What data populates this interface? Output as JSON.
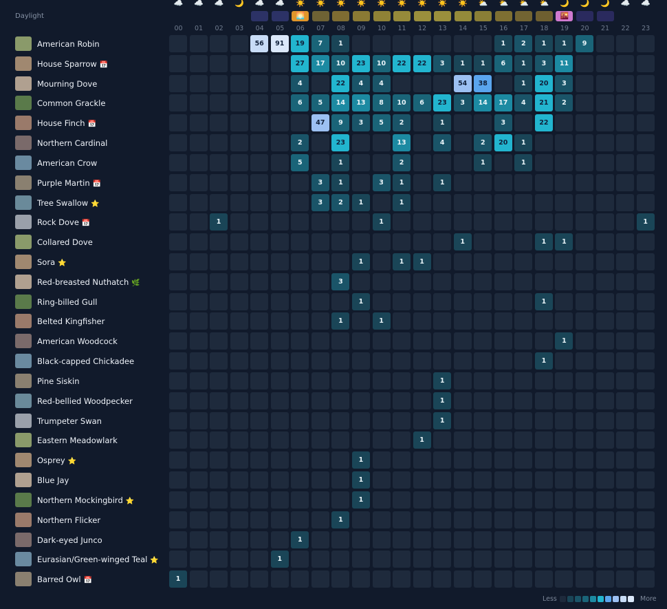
{
  "header": {
    "title": "Daylight"
  },
  "hours": [
    "00",
    "01",
    "02",
    "03",
    "04",
    "05",
    "06",
    "07",
    "08",
    "09",
    "10",
    "11",
    "12",
    "13",
    "14",
    "15",
    "16",
    "17",
    "18",
    "19",
    "20",
    "21",
    "22",
    "23"
  ],
  "weather": [
    "☁️",
    "☁️",
    "☁️",
    "🌙",
    "☁️",
    "☁️",
    "☀️",
    "☀️",
    "☀️",
    "☀️",
    "☀️",
    "☀️",
    "☀️",
    "☀️",
    "☀️",
    "⛅",
    "⛅",
    "⛅",
    "⛅",
    "🌙",
    "🌙",
    "🌙",
    "☁️",
    "☁️"
  ],
  "daylight_colors": [
    null,
    null,
    null,
    null,
    "#2c3266",
    "#2c3266",
    "#e0962a",
    "#6e6234",
    "#7e6c32",
    "#8a7a34",
    "#8f8236",
    "#968a3a",
    "#9a8f3c",
    "#9a8f3c",
    "#948a3a",
    "#8a7e36",
    "#7e6f32",
    "#726432",
    "#6e5f30",
    "#d07ad0",
    "#2a2a5e",
    "#2a2a5e",
    null,
    null
  ],
  "daylight_icons": [
    null,
    null,
    null,
    null,
    null,
    null,
    "🌅",
    null,
    null,
    null,
    null,
    null,
    null,
    null,
    null,
    null,
    null,
    null,
    null,
    "🌇",
    null,
    null,
    null,
    null
  ],
  "scale_colors": [
    "#1a4557",
    "#1a5468",
    "#1a6478",
    "#1c8aa2",
    "#22b5cf",
    "#5aa5ee",
    "#9cc0f2",
    "#c8dcf7",
    "#dbe8fa"
  ],
  "empty_color": "#1e2a3c",
  "rows": [
    {
      "name": "American Robin",
      "badge": null,
      "counts": [
        null,
        null,
        null,
        null,
        56,
        91,
        19,
        7,
        1,
        null,
        null,
        null,
        null,
        null,
        null,
        null,
        1,
        2,
        1,
        1,
        9,
        null,
        null,
        null
      ]
    },
    {
      "name": "House Sparrow",
      "badge": "📅",
      "counts": [
        null,
        null,
        null,
        null,
        null,
        null,
        27,
        17,
        10,
        23,
        10,
        22,
        22,
        3,
        1,
        1,
        6,
        1,
        3,
        11,
        null,
        null,
        null,
        null
      ]
    },
    {
      "name": "Mourning Dove",
      "badge": null,
      "counts": [
        null,
        null,
        null,
        null,
        null,
        null,
        4,
        null,
        22,
        4,
        4,
        null,
        null,
        null,
        54,
        38,
        null,
        1,
        20,
        3,
        null,
        null,
        null,
        null
      ]
    },
    {
      "name": "Common Grackle",
      "badge": null,
      "counts": [
        null,
        null,
        null,
        null,
        null,
        null,
        6,
        5,
        14,
        13,
        8,
        10,
        6,
        23,
        3,
        14,
        17,
        4,
        21,
        2,
        null,
        null,
        null,
        null
      ]
    },
    {
      "name": "House Finch",
      "badge": "📅",
      "counts": [
        null,
        null,
        null,
        null,
        null,
        null,
        null,
        47,
        9,
        3,
        5,
        2,
        null,
        1,
        null,
        null,
        3,
        null,
        22,
        null,
        null,
        null,
        null,
        null
      ]
    },
    {
      "name": "Northern Cardinal",
      "badge": null,
      "counts": [
        null,
        null,
        null,
        null,
        null,
        null,
        2,
        null,
        23,
        null,
        null,
        13,
        null,
        4,
        null,
        2,
        20,
        1,
        null,
        null,
        null,
        null,
        null,
        null
      ]
    },
    {
      "name": "American Crow",
      "badge": null,
      "counts": [
        null,
        null,
        null,
        null,
        null,
        null,
        5,
        null,
        1,
        null,
        null,
        2,
        null,
        null,
        null,
        1,
        null,
        1,
        null,
        null,
        null,
        null,
        null,
        null
      ]
    },
    {
      "name": "Purple Martin",
      "badge": "📅",
      "counts": [
        null,
        null,
        null,
        null,
        null,
        null,
        null,
        3,
        1,
        null,
        3,
        1,
        null,
        1,
        null,
        null,
        null,
        null,
        null,
        null,
        null,
        null,
        null,
        null
      ]
    },
    {
      "name": "Tree Swallow",
      "badge": "⭐",
      "counts": [
        null,
        null,
        null,
        null,
        null,
        null,
        null,
        3,
        2,
        1,
        null,
        1,
        null,
        null,
        null,
        null,
        null,
        null,
        null,
        null,
        null,
        null,
        null,
        null
      ]
    },
    {
      "name": "Rock Dove",
      "badge": "📅",
      "counts": [
        null,
        null,
        1,
        null,
        null,
        null,
        null,
        null,
        null,
        null,
        1,
        null,
        null,
        null,
        null,
        null,
        null,
        null,
        null,
        null,
        null,
        null,
        null,
        1
      ]
    },
    {
      "name": "Collared Dove",
      "badge": null,
      "counts": [
        null,
        null,
        null,
        null,
        null,
        null,
        null,
        null,
        null,
        null,
        null,
        null,
        null,
        null,
        1,
        null,
        null,
        null,
        1,
        1,
        null,
        null,
        null,
        null
      ]
    },
    {
      "name": "Sora",
      "badge": "⭐",
      "counts": [
        null,
        null,
        null,
        null,
        null,
        null,
        null,
        null,
        null,
        1,
        null,
        1,
        1,
        null,
        null,
        null,
        null,
        null,
        null,
        null,
        null,
        null,
        null,
        null
      ]
    },
    {
      "name": "Red-breasted Nuthatch",
      "badge": "🌿",
      "counts": [
        null,
        null,
        null,
        null,
        null,
        null,
        null,
        null,
        3,
        null,
        null,
        null,
        null,
        null,
        null,
        null,
        null,
        null,
        null,
        null,
        null,
        null,
        null,
        null
      ]
    },
    {
      "name": "Ring-billed Gull",
      "badge": null,
      "counts": [
        null,
        null,
        null,
        null,
        null,
        null,
        null,
        null,
        null,
        1,
        null,
        null,
        null,
        null,
        null,
        null,
        null,
        null,
        1,
        null,
        null,
        null,
        null,
        null
      ]
    },
    {
      "name": "Belted Kingfisher",
      "badge": null,
      "counts": [
        null,
        null,
        null,
        null,
        null,
        null,
        null,
        null,
        1,
        null,
        1,
        null,
        null,
        null,
        null,
        null,
        null,
        null,
        null,
        null,
        null,
        null,
        null,
        null
      ]
    },
    {
      "name": "American Woodcock",
      "badge": null,
      "counts": [
        null,
        null,
        null,
        null,
        null,
        null,
        null,
        null,
        null,
        null,
        null,
        null,
        null,
        null,
        null,
        null,
        null,
        null,
        null,
        1,
        null,
        null,
        null,
        null
      ]
    },
    {
      "name": "Black-capped Chickadee",
      "badge": null,
      "counts": [
        null,
        null,
        null,
        null,
        null,
        null,
        null,
        null,
        null,
        null,
        null,
        null,
        null,
        null,
        null,
        null,
        null,
        null,
        1,
        null,
        null,
        null,
        null,
        null
      ]
    },
    {
      "name": "Pine Siskin",
      "badge": null,
      "counts": [
        null,
        null,
        null,
        null,
        null,
        null,
        null,
        null,
        null,
        null,
        null,
        null,
        null,
        1,
        null,
        null,
        null,
        null,
        null,
        null,
        null,
        null,
        null,
        null
      ]
    },
    {
      "name": "Red-bellied Woodpecker",
      "badge": null,
      "counts": [
        null,
        null,
        null,
        null,
        null,
        null,
        null,
        null,
        null,
        null,
        null,
        null,
        null,
        1,
        null,
        null,
        null,
        null,
        null,
        null,
        null,
        null,
        null,
        null
      ]
    },
    {
      "name": "Trumpeter Swan",
      "badge": null,
      "counts": [
        null,
        null,
        null,
        null,
        null,
        null,
        null,
        null,
        null,
        null,
        null,
        null,
        null,
        1,
        null,
        null,
        null,
        null,
        null,
        null,
        null,
        null,
        null,
        null
      ]
    },
    {
      "name": "Eastern Meadowlark",
      "badge": null,
      "counts": [
        null,
        null,
        null,
        null,
        null,
        null,
        null,
        null,
        null,
        null,
        null,
        null,
        1,
        null,
        null,
        null,
        null,
        null,
        null,
        null,
        null,
        null,
        null,
        null
      ]
    },
    {
      "name": "Osprey",
      "badge": "⭐",
      "counts": [
        null,
        null,
        null,
        null,
        null,
        null,
        null,
        null,
        null,
        1,
        null,
        null,
        null,
        null,
        null,
        null,
        null,
        null,
        null,
        null,
        null,
        null,
        null,
        null
      ]
    },
    {
      "name": "Blue Jay",
      "badge": null,
      "counts": [
        null,
        null,
        null,
        null,
        null,
        null,
        null,
        null,
        null,
        1,
        null,
        null,
        null,
        null,
        null,
        null,
        null,
        null,
        null,
        null,
        null,
        null,
        null,
        null
      ]
    },
    {
      "name": "Northern Mockingbird",
      "badge": "⭐",
      "counts": [
        null,
        null,
        null,
        null,
        null,
        null,
        null,
        null,
        null,
        1,
        null,
        null,
        null,
        null,
        null,
        null,
        null,
        null,
        null,
        null,
        null,
        null,
        null,
        null
      ]
    },
    {
      "name": "Northern Flicker",
      "badge": null,
      "counts": [
        null,
        null,
        null,
        null,
        null,
        null,
        null,
        null,
        1,
        null,
        null,
        null,
        null,
        null,
        null,
        null,
        null,
        null,
        null,
        null,
        null,
        null,
        null,
        null
      ]
    },
    {
      "name": "Dark-eyed Junco",
      "badge": null,
      "counts": [
        null,
        null,
        null,
        null,
        null,
        null,
        1,
        null,
        null,
        null,
        null,
        null,
        null,
        null,
        null,
        null,
        null,
        null,
        null,
        null,
        null,
        null,
        null,
        null
      ]
    },
    {
      "name": "Eurasian/Green-winged Teal",
      "badge": "⭐",
      "counts": [
        null,
        null,
        null,
        null,
        null,
        1,
        null,
        null,
        null,
        null,
        null,
        null,
        null,
        null,
        null,
        null,
        null,
        null,
        null,
        null,
        null,
        null,
        null,
        null
      ]
    },
    {
      "name": "Barred Owl",
      "badge": "📅",
      "counts": [
        1,
        null,
        null,
        null,
        null,
        null,
        null,
        null,
        null,
        null,
        null,
        null,
        null,
        null,
        null,
        null,
        null,
        null,
        null,
        null,
        null,
        null,
        null,
        null
      ]
    }
  ],
  "legend": {
    "less": "Less",
    "more": "More"
  }
}
